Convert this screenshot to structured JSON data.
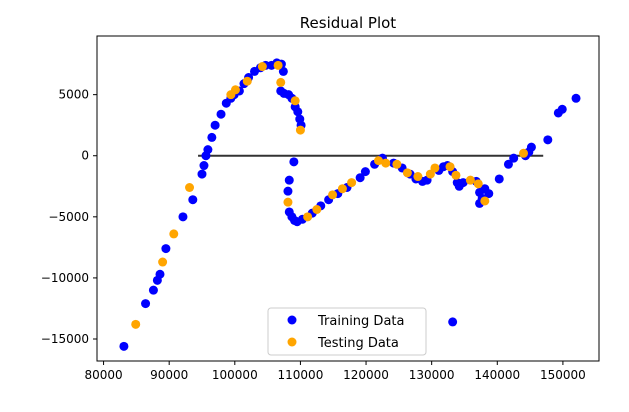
{
  "chart_data": {
    "type": "scatter",
    "title": "Residual Plot",
    "xlabel": "",
    "ylabel": "",
    "xlim": [
      79000,
      155500
    ],
    "ylim": [
      -16800,
      9800
    ],
    "x_ticks": [
      80000,
      90000,
      100000,
      110000,
      120000,
      130000,
      140000,
      150000
    ],
    "x_tick_labels": [
      "80000",
      "90000",
      "100000",
      "110000",
      "120000",
      "130000",
      "140000",
      "150000"
    ],
    "y_ticks": [
      -15000,
      -10000,
      -5000,
      0,
      5000
    ],
    "y_tick_labels": [
      "−15000",
      "−10000",
      "−5000",
      "0",
      "5000"
    ],
    "grid": false,
    "legend_position": "lower-center",
    "hline": {
      "y": 0,
      "xmin": 94400,
      "xmax": 147000,
      "color": "#333333"
    },
    "series": [
      {
        "name": "Training Data",
        "color": "#0000ff",
        "points": [
          [
            83100,
            -15600
          ],
          [
            86400,
            -12100
          ],
          [
            87600,
            -11000
          ],
          [
            88200,
            -10200
          ],
          [
            88600,
            -9700
          ],
          [
            89500,
            -7600
          ],
          [
            92100,
            -5000
          ],
          [
            93600,
            -3600
          ],
          [
            95000,
            -1500
          ],
          [
            95300,
            -800
          ],
          [
            95600,
            0
          ],
          [
            95900,
            500
          ],
          [
            96500,
            1500
          ],
          [
            97000,
            2500
          ],
          [
            97900,
            3400
          ],
          [
            98700,
            4300
          ],
          [
            99400,
            4700
          ],
          [
            99900,
            5000
          ],
          [
            100700,
            5300
          ],
          [
            101400,
            5900
          ],
          [
            102100,
            6400
          ],
          [
            103000,
            6900
          ],
          [
            103900,
            7200
          ],
          [
            104700,
            7400
          ],
          [
            105600,
            7400
          ],
          [
            106400,
            7600
          ],
          [
            107100,
            7500
          ],
          [
            107400,
            6900
          ],
          [
            107000,
            5300
          ],
          [
            107500,
            5100
          ],
          [
            108200,
            5000
          ],
          [
            108700,
            4700
          ],
          [
            109200,
            4000
          ],
          [
            109600,
            3600
          ],
          [
            109900,
            3000
          ],
          [
            110100,
            2500
          ],
          [
            109000,
            -500
          ],
          [
            108300,
            -2000
          ],
          [
            108100,
            -2900
          ],
          [
            108300,
            -4600
          ],
          [
            108700,
            -5000
          ],
          [
            109100,
            -5300
          ],
          [
            109500,
            -5400
          ],
          [
            110300,
            -5200
          ],
          [
            111800,
            -4700
          ],
          [
            113100,
            -4100
          ],
          [
            114300,
            -3600
          ],
          [
            115700,
            -3100
          ],
          [
            117100,
            -2600
          ],
          [
            119100,
            -1800
          ],
          [
            119900,
            -1300
          ],
          [
            121300,
            -700
          ],
          [
            122500,
            -200
          ],
          [
            124200,
            -600
          ],
          [
            125500,
            -1000
          ],
          [
            126700,
            -1500
          ],
          [
            127600,
            -1900
          ],
          [
            128600,
            -2100
          ],
          [
            129300,
            -2000
          ],
          [
            131100,
            -1200
          ],
          [
            131800,
            -900
          ],
          [
            132400,
            -800
          ],
          [
            133200,
            -1300
          ],
          [
            133900,
            -2200
          ],
          [
            134200,
            -2500
          ],
          [
            134800,
            -2200
          ],
          [
            133200,
            -13600
          ],
          [
            136800,
            -2100
          ],
          [
            137300,
            -3000
          ],
          [
            137700,
            -3500
          ],
          [
            137300,
            -3900
          ],
          [
            138100,
            -2700
          ],
          [
            138700,
            -3100
          ],
          [
            140300,
            -1900
          ],
          [
            141700,
            -700
          ],
          [
            142500,
            -200
          ],
          [
            144300,
            0
          ],
          [
            144800,
            300
          ],
          [
            145200,
            700
          ],
          [
            147700,
            1300
          ],
          [
            149300,
            3500
          ],
          [
            149900,
            3800
          ],
          [
            152000,
            4700
          ]
        ]
      },
      {
        "name": "Testing Data",
        "color": "#ffa500",
        "points": [
          [
            84900,
            -13800
          ],
          [
            89000,
            -8700
          ],
          [
            90700,
            -6400
          ],
          [
            93100,
            -2600
          ],
          [
            99400,
            5000
          ],
          [
            100100,
            5400
          ],
          [
            101900,
            6100
          ],
          [
            104200,
            7300
          ],
          [
            106600,
            7400
          ],
          [
            107000,
            6000
          ],
          [
            109200,
            4500
          ],
          [
            110000,
            2100
          ],
          [
            108100,
            -3800
          ],
          [
            111100,
            -5000
          ],
          [
            112500,
            -4400
          ],
          [
            114900,
            -3200
          ],
          [
            116400,
            -2700
          ],
          [
            117800,
            -2200
          ],
          [
            121900,
            -400
          ],
          [
            123000,
            -600
          ],
          [
            124700,
            -700
          ],
          [
            126300,
            -1400
          ],
          [
            127900,
            -1700
          ],
          [
            129800,
            -1500
          ],
          [
            130500,
            -1000
          ],
          [
            132800,
            -900
          ],
          [
            133700,
            -1600
          ],
          [
            135900,
            -2000
          ],
          [
            137100,
            -2300
          ],
          [
            138100,
            -3700
          ],
          [
            144000,
            200
          ]
        ]
      }
    ]
  }
}
